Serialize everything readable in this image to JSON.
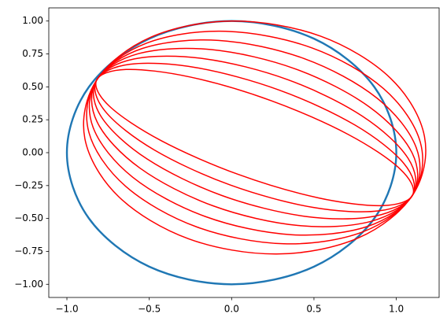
{
  "chart_data": {
    "type": "line",
    "xlim": [
      -1.11,
      1.26
    ],
    "ylim": [
      -1.1,
      1.1
    ],
    "xticks": [
      {
        "value": -1.0,
        "label": "−1.0"
      },
      {
        "value": -0.5,
        "label": "−0.5"
      },
      {
        "value": 0.0,
        "label": "0.0"
      },
      0.5,
      {
        "value": 1.0,
        "label": "1.0"
      }
    ],
    "yticks": [
      {
        "value": -1.0,
        "label": "−1.00"
      },
      {
        "value": -0.75,
        "label": "−0.75"
      },
      {
        "value": -0.5,
        "label": "−0.50"
      },
      {
        "value": -0.25,
        "label": "−0.25"
      },
      {
        "value": 0.0,
        "label": "0.00"
      },
      {
        "value": 0.25,
        "label": "0.25"
      },
      {
        "value": 0.5,
        "label": "0.50"
      },
      {
        "value": 0.75,
        "label": "0.75"
      },
      {
        "value": 1.0,
        "label": "1.00"
      }
    ],
    "grid": false,
    "series": [
      {
        "color": "#1f77b4",
        "x": [
          1,
          0.866,
          0.5,
          0,
          -0.5,
          -0.866,
          -1,
          -0.866,
          -0.5,
          0,
          0.5,
          0.866,
          1
        ],
        "y": [
          0,
          0.5,
          0.866,
          1,
          0.866,
          0.5,
          0,
          -0.5,
          -0.866,
          -1,
          -0.866,
          -0.5,
          0
        ]
      },
      {
        "color": "#ff0000",
        "x": [
          1.1,
          1.171,
          0.966,
          0.54,
          0.006,
          -0.491,
          -0.82,
          -0.891,
          -0.686,
          -0.26,
          0.274,
          0.771,
          1.1
        ],
        "y": [
          -0.32,
          0.123,
          0.564,
          0.885,
          1.0,
          0.877,
          0.55,
          0.107,
          -0.334,
          -0.655,
          -0.77,
          -0.647,
          -0.32
        ]
      },
      {
        "color": "#ff0000",
        "x": [
          1.1,
          1.146,
          0.923,
          0.49,
          -0.037,
          -0.516,
          -0.82,
          -0.866,
          -0.643,
          -0.21,
          0.317,
          0.796,
          1.1
        ],
        "y": [
          -0.32,
          0.078,
          0.486,
          0.795,
          0.922,
          0.832,
          0.55,
          0.152,
          -0.256,
          -0.565,
          -0.692,
          -0.602,
          -0.32
        ]
      },
      {
        "color": "#ff0000",
        "x": [
          1.1,
          1.121,
          0.88,
          0.44,
          -0.08,
          -0.541,
          -0.82,
          -0.841,
          -0.6,
          -0.16,
          0.36,
          0.821,
          1.1
        ],
        "y": [
          -0.32,
          0.038,
          0.417,
          0.715,
          0.853,
          0.792,
          0.55,
          0.192,
          -0.187,
          -0.485,
          -0.623,
          -0.562,
          -0.32
        ]
      },
      {
        "color": "#ff0000",
        "x": [
          1.1,
          1.096,
          0.837,
          0.39,
          -0.123,
          -0.566,
          -0.82,
          -0.816,
          -0.557,
          -0.11,
          0.403,
          0.846,
          1.1
        ],
        "y": [
          -0.32,
          -0.002,
          0.347,
          0.635,
          0.783,
          0.752,
          0.55,
          0.232,
          -0.117,
          -0.405,
          -0.553,
          -0.522,
          -0.32
        ]
      },
      {
        "color": "#ff0000",
        "x": [
          1.1,
          1.071,
          0.793,
          0.34,
          -0.167,
          -0.591,
          -0.82,
          -0.791,
          -0.513,
          -0.06,
          0.447,
          0.871,
          1.1
        ],
        "y": [
          -0.32,
          -0.042,
          0.278,
          0.555,
          0.714,
          0.712,
          0.55,
          0.272,
          -0.048,
          -0.325,
          -0.484,
          -0.482,
          -0.32
        ]
      },
      {
        "color": "#ff0000",
        "x": [
          1.1,
          1.046,
          0.75,
          0.29,
          -0.21,
          -0.616,
          -0.82,
          -0.766,
          -0.47,
          -0.01,
          0.49,
          0.896,
          1.1
        ],
        "y": [
          -0.32,
          -0.082,
          0.209,
          0.475,
          0.645,
          0.672,
          0.55,
          0.312,
          0.021,
          -0.245,
          -0.415,
          -0.442,
          -0.32
        ]
      },
      {
        "color": "#ff0000",
        "x": [
          1.1,
          1.021,
          0.707,
          0.24,
          -0.253,
          -0.641,
          -0.82,
          -0.741,
          -0.427,
          0.04,
          0.533,
          0.921,
          1.1
        ],
        "y": [
          -0.32,
          -0.122,
          0.139,
          0.395,
          0.575,
          0.632,
          0.55,
          0.352,
          0.091,
          -0.165,
          -0.345,
          -0.402,
          -0.32
        ]
      }
    ]
  }
}
